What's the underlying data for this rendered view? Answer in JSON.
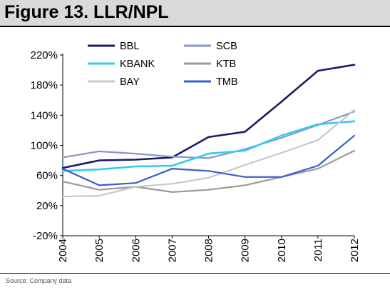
{
  "figure": {
    "title": "Figure 13. LLR/NPL",
    "source": "Source: Company data"
  },
  "chart_data": {
    "type": "line",
    "title": "Figure 13. LLR/NPL",
    "xlabel": "",
    "ylabel": "",
    "x": [
      "2004",
      "2005",
      "2006",
      "2007",
      "2008",
      "2009",
      "2010",
      "2011",
      "2012"
    ],
    "ylim": [
      -20,
      220
    ],
    "yticks": [
      -20,
      20,
      60,
      100,
      140,
      180,
      220
    ],
    "ytick_labels": [
      "-20%",
      "20%",
      "60%",
      "100%",
      "140%",
      "180%",
      "220%"
    ],
    "grid": false,
    "legend_position": "top-left",
    "series": [
      {
        "name": "BBL",
        "color": "#1a1a6e",
        "values": [
          70,
          80,
          81,
          84,
          111,
          118,
          158,
          199,
          207
        ]
      },
      {
        "name": "SCB",
        "color": "#8c94c8",
        "values": [
          84,
          92,
          89,
          85,
          83,
          95,
          110,
          127,
          145
        ]
      },
      {
        "name": "KBANK",
        "color": "#33ccee",
        "values": [
          66,
          68,
          72,
          73,
          89,
          93,
          113,
          128,
          132
        ]
      },
      {
        "name": "KTB",
        "color": "#9a9a9a",
        "values": [
          52,
          41,
          45,
          38,
          41,
          47,
          58,
          69,
          93
        ]
      },
      {
        "name": "BAY",
        "color": "#c8c8c8",
        "values": [
          32,
          33,
          45,
          49,
          57,
          74,
          90,
          107,
          147
        ]
      },
      {
        "name": "TMB",
        "color": "#3a5cd0",
        "values": [
          69,
          47,
          50,
          69,
          66,
          58,
          58,
          73,
          113
        ]
      }
    ]
  }
}
